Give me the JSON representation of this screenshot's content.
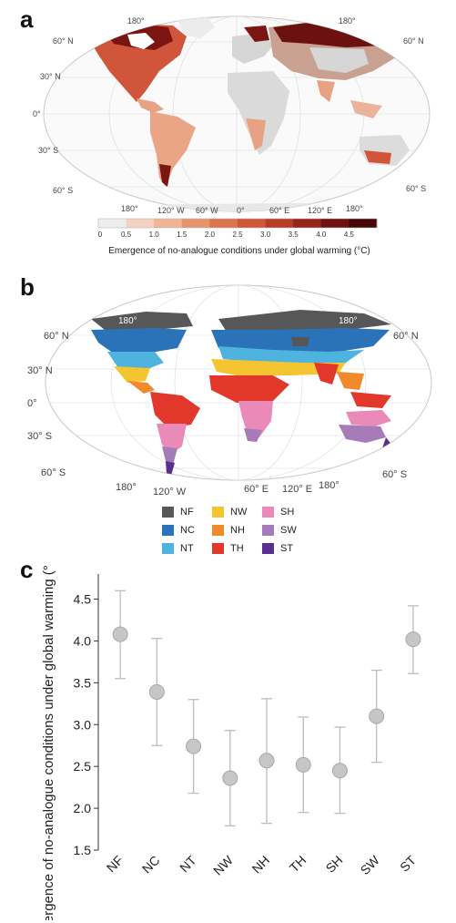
{
  "panels": {
    "a": "a",
    "b": "b",
    "c": "c"
  },
  "map_a": {
    "lat_labels_left": [
      "60° N",
      "30° N",
      "0°",
      "30° S",
      "60° S"
    ],
    "lat_labels_right": [
      "60° N",
      "60° S"
    ],
    "lon_labels_top": [
      "180°",
      "180°"
    ],
    "lon_labels_bottom": [
      "180°",
      "120° W",
      "60° W",
      "0°",
      "60° E",
      "120° E",
      "180°"
    ],
    "colorbar": {
      "ticks": [
        "0",
        "0.5",
        "1.0",
        "1.5",
        "2.0",
        "2.5",
        "3.0",
        "3.5",
        "4.0",
        "4.5"
      ],
      "colors": [
        "#eeeeee",
        "#f3d2c0",
        "#eeb596",
        "#e6946c",
        "#dd7450",
        "#cf5737",
        "#b83b26",
        "#972419",
        "#6e1110",
        "#450707"
      ],
      "label": "Emergence of no-analogue conditions under global warming (°C)"
    }
  },
  "map_b": {
    "lat_labels_left": [
      "60° N",
      "30° N",
      "0°",
      "30° S",
      "60° S"
    ],
    "lat_labels_right": [
      "60° N",
      "60° S"
    ],
    "lon_labels_top": [
      "180°",
      "180°"
    ],
    "lon_labels_bottom": [
      "180°",
      "120° W",
      "60° E",
      "120° E",
      "180°"
    ],
    "legend": [
      {
        "label": "NF",
        "color": "#555759"
      },
      {
        "label": "NC",
        "color": "#2a73b8"
      },
      {
        "label": "NT",
        "color": "#4fb3e0"
      },
      {
        "label": "NW",
        "color": "#f5c531"
      },
      {
        "label": "NH",
        "color": "#f08a2a"
      },
      {
        "label": "TH",
        "color": "#e2372b"
      },
      {
        "label": "SH",
        "color": "#ea8ab8"
      },
      {
        "label": "SW",
        "color": "#a77ab8"
      },
      {
        "label": "ST",
        "color": "#5b2f8f"
      }
    ]
  },
  "chart_data": {
    "type": "scatter",
    "categories": [
      "NF",
      "NC",
      "NT",
      "NW",
      "NH",
      "TH",
      "SH",
      "SW",
      "ST"
    ],
    "values": [
      4.08,
      3.39,
      2.74,
      2.36,
      2.57,
      2.52,
      2.45,
      3.1,
      4.02
    ],
    "error_low": [
      3.55,
      2.75,
      2.18,
      1.79,
      1.82,
      1.95,
      1.94,
      2.55,
      3.61
    ],
    "error_high": [
      4.6,
      4.03,
      3.3,
      2.93,
      3.31,
      3.09,
      2.97,
      3.65,
      4.42
    ],
    "xlabel": "",
    "ylabel": "Emergence of no-analogue conditions under global warming (°C)",
    "ylim": [
      1.5,
      4.8
    ],
    "yticks": [
      "1.5",
      "2.0",
      "2.5",
      "3.0",
      "3.5",
      "4.0",
      "4.5"
    ],
    "grid": false,
    "marker_color": "#c6c6c6"
  }
}
